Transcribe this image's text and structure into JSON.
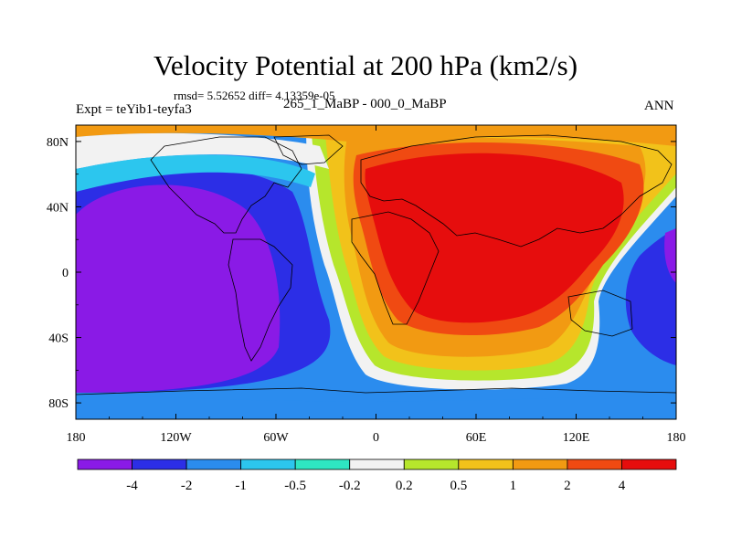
{
  "chart_data": {
    "type": "heatmap",
    "title": "Velocity Potential at 200 hPa (km2/s)",
    "subtitle": "rmsd= 5.52652 diff= 4.13359e-05",
    "left_label": "Expt = teYib1-teyfa3",
    "center_label": "265_1_MaBP - 000_0_MaBP",
    "right_label": "ANN",
    "x_ticks": [
      {
        "value": -180,
        "label": "180"
      },
      {
        "value": -120,
        "label": "120W"
      },
      {
        "value": -60,
        "label": "60W"
      },
      {
        "value": 0,
        "label": "0"
      },
      {
        "value": 60,
        "label": "60E"
      },
      {
        "value": 120,
        "label": "120E"
      },
      {
        "value": 180,
        "label": "180"
      }
    ],
    "y_ticks": [
      {
        "value": 80,
        "label": "80N"
      },
      {
        "value": 40,
        "label": "40N"
      },
      {
        "value": 0,
        "label": "0"
      },
      {
        "value": -40,
        "label": "40S"
      },
      {
        "value": -80,
        "label": "80S"
      }
    ],
    "xlim": [
      -180,
      180
    ],
    "ylim": [
      -90,
      90
    ],
    "contour_levels": [
      "-4",
      "-2",
      "-1",
      "-0.5",
      "-0.2",
      "0.2",
      "0.5",
      "1",
      "2",
      "4"
    ],
    "colorbar_colors": [
      "#8a1ae6",
      "#2c2ee6",
      "#2b8cee",
      "#2cc6ee",
      "#2ee6c2",
      "#f2f2f2",
      "#b6e62c",
      "#f2c21a",
      "#f29a12",
      "#f04a12",
      "#e60d0d"
    ],
    "field": {
      "description_cells": "coarse representation of velocity potential difference",
      "min_region": {
        "lon": -110,
        "lat": 0,
        "value": -4.5
      },
      "max_region": {
        "lon": 60,
        "lat": 20,
        "value": 4.5
      }
    }
  }
}
